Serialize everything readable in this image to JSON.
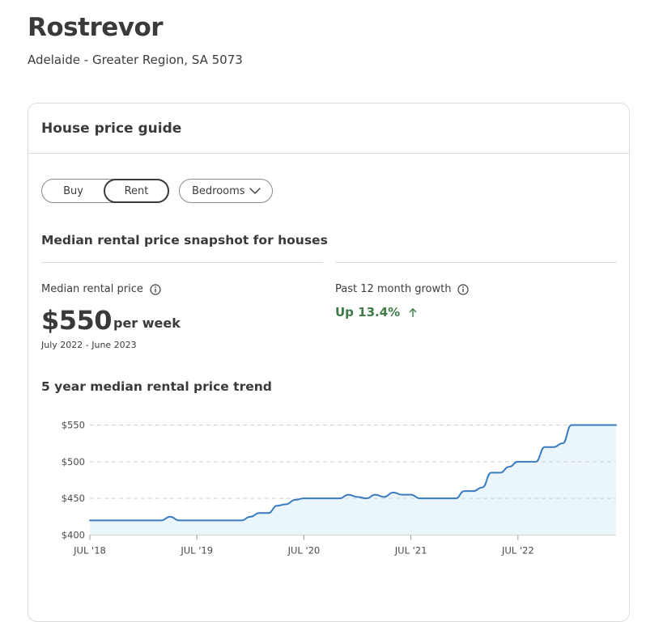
{
  "suburb": {
    "name": "Rostrevor",
    "region": "Adelaide - Greater Region, SA 5073"
  },
  "card": {
    "title": "House price guide",
    "toggle": {
      "buy_label": "Buy",
      "rent_label": "Rent",
      "selected": "Rent"
    },
    "bedrooms_label": "Bedrooms",
    "snapshot_title": "Median rental price snapshot for houses",
    "median": {
      "label": "Median rental price",
      "value": "$550",
      "unit": "per week",
      "period": "July 2022 - June 2023"
    },
    "growth": {
      "label": "Past 12 month growth",
      "value": "Up 13.4%",
      "color": "#3d7a46"
    },
    "trend_title": "5 year median rental price trend"
  },
  "icons": [
    "info-icon",
    "chevron-down-icon",
    "up-arrow-icon"
  ],
  "colors": {
    "line": "#3a7bbf",
    "area": "#eaf6fc",
    "growth": "#3d7a46"
  },
  "chart_data": {
    "type": "area",
    "title": "5 year median rental price trend",
    "xlabel": "",
    "ylabel": "",
    "ylim": [
      400,
      550
    ],
    "yticks": [
      400,
      450,
      500,
      550
    ],
    "ytick_labels": [
      "$400",
      "$450",
      "$500",
      "$550"
    ],
    "xtick_labels": [
      "JUL '18",
      "JUL '19",
      "JUL '20",
      "JUL '21",
      "JUL '22"
    ],
    "xtick_positions": [
      0,
      12,
      24,
      36,
      48
    ],
    "x_end": 59,
    "grid": true,
    "series": [
      {
        "x": [
          0,
          8,
          9,
          10,
          17,
          18,
          19,
          20,
          21,
          22,
          23,
          24,
          25,
          26,
          28,
          29,
          30,
          31,
          32,
          33,
          34,
          35,
          36,
          37,
          41,
          42,
          43,
          44,
          45,
          46,
          47,
          48,
          49,
          50,
          51,
          52,
          53,
          54,
          55,
          56,
          59
        ],
        "values": [
          420,
          420,
          425,
          420,
          420,
          425,
          430,
          430,
          440,
          442,
          448,
          450,
          450,
          450,
          450,
          455,
          452,
          450,
          455,
          452,
          458,
          455,
          455,
          450,
          450,
          460,
          460,
          465,
          485,
          485,
          493,
          500,
          500,
          500,
          520,
          520,
          525,
          550,
          550,
          550,
          550
        ]
      }
    ]
  }
}
